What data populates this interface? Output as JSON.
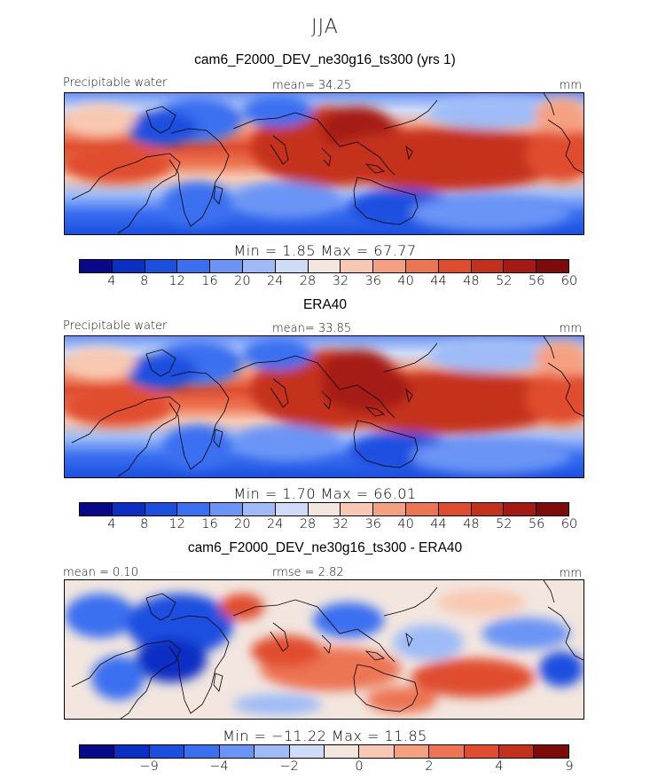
{
  "figure": {
    "season": "JJA"
  },
  "panels": [
    {
      "title": "cam6_F2000_DEV_ne30g16_ts300 (yrs 1)",
      "left_label": "Precipitable water",
      "center_label": "mean=  34.25",
      "right_label": "mm",
      "minmax_text": "Min =    1.85  Max =   67.77",
      "field": "model",
      "colorbar": "abs"
    },
    {
      "title": "ERA40",
      "left_label": "Precipitable water",
      "center_label": "mean=  33.85",
      "right_label": "mm",
      "minmax_text": "Min =    1.70  Max =   66.01",
      "field": "obs",
      "colorbar": "abs"
    },
    {
      "title": "cam6_F2000_DEV_ne30g16_ts300 - ERA40",
      "left_label": "mean =   0.10",
      "center_label": "rmse =   2.82",
      "right_label": "mm",
      "minmax_text": "Min = −11.22  Max =   11.85",
      "field": "diff",
      "colorbar": "diff"
    }
  ],
  "colorbars": {
    "abs": {
      "colors": [
        "#08088a",
        "#0b2fc4",
        "#1b4fe0",
        "#3a6ff0",
        "#6a94f5",
        "#9ebbf7",
        "#cfdcf7",
        "#f2e6df",
        "#f8c9b2",
        "#f5a181",
        "#ec7553",
        "#e04d2e",
        "#c5301c",
        "#a51a12",
        "#7e0a0a"
      ],
      "labels": [
        "4",
        "8",
        "12",
        "16",
        "20",
        "24",
        "28",
        "32",
        "36",
        "40",
        "44",
        "48",
        "52",
        "56",
        "60"
      ],
      "label_after_box": [
        1,
        2,
        3,
        4,
        5,
        6,
        7,
        8,
        9,
        10,
        11,
        12,
        13,
        14,
        15
      ]
    },
    "diff": {
      "colors": [
        "#08088a",
        "#0b2fc4",
        "#1b4fe0",
        "#3a6ff0",
        "#6a94f5",
        "#9ebbf7",
        "#cfdcf7",
        "#f2e6df",
        "#f8c9b2",
        "#f5a181",
        "#ec7553",
        "#e04d2e",
        "#c5301c",
        "#7e0a0a"
      ],
      "labels": [
        "−9",
        "−4",
        "−2",
        "0",
        "2",
        "4",
        "9"
      ],
      "label_after_box": [
        2,
        4,
        6,
        8,
        10,
        12,
        14
      ]
    }
  }
}
